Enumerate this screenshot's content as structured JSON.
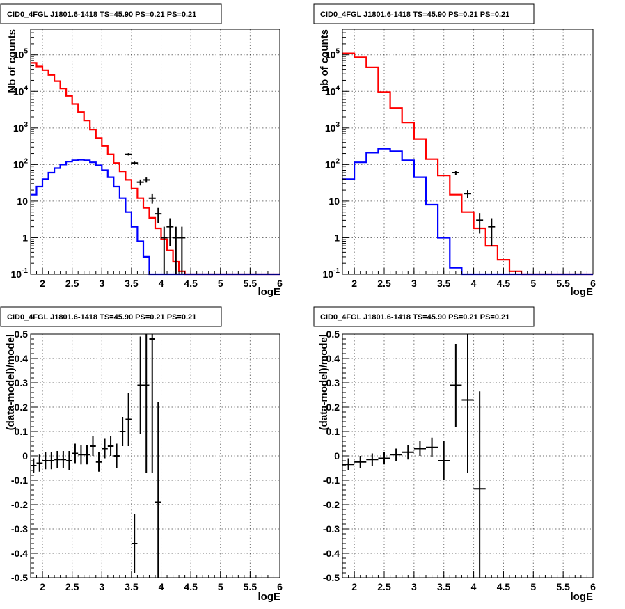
{
  "chart_data": [
    {
      "type": "histogram",
      "title": "CID0_4FGL J1801.6-1418 TS=45.90 PS=0.21 PS=0.21",
      "xlabel": "logE",
      "ylabel": "Nb of counts",
      "xlim": [
        1.8,
        6.0
      ],
      "ylim": [
        0.1,
        500000
      ],
      "yscale": "log",
      "grid": true,
      "x_ticks": [
        "2",
        "2.5",
        "3",
        "3.5",
        "4",
        "4.5",
        "5",
        "5.5",
        "6"
      ],
      "y_ticks": [
        "10^-1",
        "1",
        "10",
        "10^2",
        "10^3",
        "10^4",
        "10^5"
      ],
      "bin_edges": [
        1.8,
        1.9,
        2.0,
        2.1,
        2.2,
        2.3,
        2.4,
        2.5,
        2.6,
        2.7,
        2.8,
        2.9,
        3.0,
        3.1,
        3.2,
        3.3,
        3.4,
        3.5,
        3.6,
        3.7,
        3.8,
        3.9,
        4.0,
        4.1,
        4.2,
        4.3,
        4.4,
        4.5,
        4.6,
        4.7,
        4.8,
        4.9,
        5.0,
        5.1,
        5.2,
        5.3,
        5.4,
        5.5,
        5.6,
        5.7,
        5.8,
        5.9,
        6.0
      ],
      "series": [
        {
          "kind": "step",
          "color": "#ff0000",
          "values": [
            60000,
            48000,
            38000,
            28000,
            19000,
            12000,
            7500,
            4500,
            2700,
            1600,
            900,
            530,
            320,
            190,
            110,
            65,
            38,
            22,
            12,
            6.5,
            3.5,
            1.8,
            0.9,
            0.45,
            0.22,
            0.12,
            0.1,
            0.1,
            0.1,
            0.1,
            0.1,
            0.1,
            0.1,
            0.1,
            0.1,
            0.1,
            0.1,
            0.1,
            0.1,
            0.1,
            0.1,
            0.1
          ]
        },
        {
          "kind": "step",
          "color": "#0000ff",
          "values": [
            15,
            25,
            40,
            60,
            80,
            100,
            120,
            130,
            135,
            130,
            115,
            95,
            70,
            45,
            25,
            12,
            5,
            2,
            0.8,
            0.3,
            0.1,
            0.1,
            0.1,
            0.1,
            0.1,
            0.1,
            0.1,
            0.1,
            0.1,
            0.1,
            0.1,
            0.1,
            0.1,
            0.1,
            0.1,
            0.1,
            0.1,
            0.1,
            0.1,
            0.1,
            0.1,
            0.1
          ]
        },
        {
          "kind": "points",
          "color": "#000000",
          "x": [
            3.45,
            3.55,
            3.65,
            3.75,
            3.85,
            3.95,
            4.05,
            4.15,
            4.25,
            4.35
          ],
          "y": [
            190,
            110,
            33,
            38,
            12,
            4.5,
            1,
            2,
            1,
            1
          ],
          "y_err_low": [
            14,
            10,
            6,
            6,
            3.5,
            2,
            1,
            1.4,
            1,
            1
          ],
          "y_err_high": [
            14,
            10,
            6,
            6,
            3.5,
            2,
            1,
            1.4,
            1,
            1
          ]
        }
      ]
    },
    {
      "type": "histogram",
      "title": "CID0_4FGL J1801.6-1418 TS=45.90 PS=0.21 PS=0.21",
      "xlabel": "logE",
      "ylabel": "nb of counts",
      "xlim": [
        1.8,
        6.0
      ],
      "ylim": [
        0.1,
        500000
      ],
      "yscale": "log",
      "grid": true,
      "x_ticks": [
        "2",
        "2.5",
        "3",
        "3.5",
        "4",
        "4.5",
        "5",
        "5.5",
        "6"
      ],
      "y_ticks": [
        "10^-1",
        "1",
        "10",
        "10^2",
        "10^3",
        "10^4",
        "10^5"
      ],
      "bin_edges": [
        1.8,
        2.0,
        2.2,
        2.4,
        2.6,
        2.8,
        3.0,
        3.2,
        3.4,
        3.6,
        3.8,
        4.0,
        4.2,
        4.4,
        4.6,
        4.8,
        5.0,
        5.2,
        5.4,
        5.6,
        5.8,
        6.0
      ],
      "series": [
        {
          "kind": "step",
          "color": "#ff0000",
          "values": [
            110000,
            85000,
            45000,
            9500,
            3500,
            1400,
            500,
            140,
            50,
            15,
            5,
            1.8,
            0.6,
            0.25,
            0.12,
            0.1,
            0.1,
            0.1,
            0.1,
            0.1,
            0.1
          ]
        },
        {
          "kind": "step",
          "color": "#0000ff",
          "values": [
            40,
            115,
            210,
            270,
            230,
            130,
            45,
            8,
            1,
            0.15,
            0.1,
            0.1,
            0.1,
            0.1,
            0.1,
            0.1,
            0.1,
            0.1,
            0.1,
            0.1,
            0.1
          ]
        },
        {
          "kind": "points",
          "color": "#000000",
          "x": [
            3.7,
            3.9,
            4.1,
            4.3
          ],
          "y": [
            60,
            16,
            3,
            2
          ],
          "y_err_low": [
            8,
            4,
            1.7,
            1.4
          ],
          "y_err_high": [
            8,
            4,
            1.7,
            1.4
          ]
        }
      ]
    },
    {
      "type": "scatter",
      "title": "CID0_4FGL J1801.6-1418 TS=45.90 PS=0.21 PS=0.21",
      "xlabel": "logE",
      "ylabel": "(data-model)/model",
      "xlim": [
        1.8,
        6.0
      ],
      "ylim": [
        -0.5,
        0.5
      ],
      "grid": true,
      "x_ticks": [
        "2",
        "2.5",
        "3",
        "3.5",
        "4",
        "4.5",
        "5",
        "5.5",
        "6"
      ],
      "y_ticks": [
        "-0.5",
        "-0.4",
        "-0.3",
        "-0.2",
        "-0.1",
        "0",
        "0.1",
        "0.2",
        "0.3",
        "0.4",
        "0.5"
      ],
      "points": {
        "x": [
          1.85,
          1.95,
          2.05,
          2.15,
          2.25,
          2.35,
          2.45,
          2.55,
          2.65,
          2.75,
          2.85,
          2.95,
          3.05,
          3.15,
          3.25,
          3.35,
          3.45,
          3.55,
          3.65,
          3.75,
          3.85,
          3.95
        ],
        "y": [
          -0.04,
          -0.03,
          -0.02,
          -0.02,
          -0.015,
          -0.015,
          -0.02,
          0.01,
          0.005,
          0.005,
          0.04,
          -0.025,
          0.03,
          0.04,
          0.0,
          0.1,
          0.15,
          -0.36,
          0.29,
          0.29,
          0.48,
          -0.19
        ],
        "y_err": [
          0.03,
          0.035,
          0.035,
          0.035,
          0.035,
          0.035,
          0.04,
          0.04,
          0.04,
          0.04,
          0.04,
          0.04,
          0.04,
          0.04,
          0.05,
          0.06,
          0.11,
          0.12,
          0.2,
          0.36,
          0.55,
          0.41
        ],
        "x_err": 0.05
      }
    },
    {
      "type": "scatter",
      "title": "CID0_4FGL J1801.6-1418 TS=45.90 PS=0.21 PS=0.21",
      "xlabel": "logE",
      "ylabel": "(data-model)/model",
      "xlim": [
        1.8,
        6.0
      ],
      "ylim": [
        -0.5,
        0.5
      ],
      "grid": true,
      "x_ticks": [
        "2",
        "2.5",
        "3",
        "3.5",
        "4",
        "4.5",
        "5",
        "5.5",
        "6"
      ],
      "y_ticks": [
        "-0.5",
        "-0.4",
        "-0.3",
        "-0.2",
        "-0.1",
        "0",
        "0.1",
        "0.2",
        "0.3",
        "0.4",
        "0.5"
      ],
      "points": {
        "x": [
          1.9,
          2.1,
          2.3,
          2.5,
          2.7,
          2.9,
          3.1,
          3.3,
          3.5,
          3.7,
          3.9,
          4.1
        ],
        "y": [
          -0.035,
          -0.025,
          -0.015,
          -0.01,
          0.005,
          0.015,
          0.03,
          0.035,
          -0.02,
          0.29,
          0.23,
          -0.135
        ],
        "y_err": [
          0.025,
          0.025,
          0.025,
          0.025,
          0.025,
          0.03,
          0.03,
          0.04,
          0.08,
          0.17,
          0.3,
          0.4
        ],
        "x_err": 0.1
      }
    }
  ]
}
